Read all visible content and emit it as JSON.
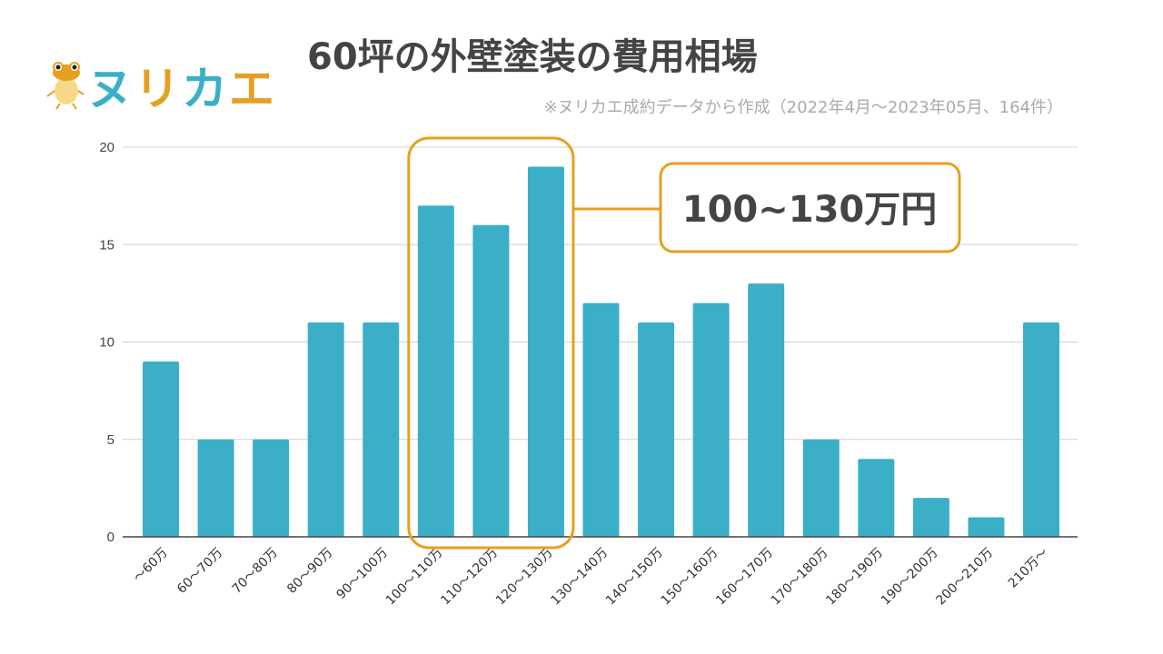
{
  "logo": {
    "text": "ヌリカエ",
    "colors": [
      "#3BAFC8",
      "#E6A020",
      "#3BAFC8",
      "#E6A020"
    ]
  },
  "chart_data": {
    "type": "bar",
    "title": "60坪の外壁塗装の費用相場",
    "subtitle": "※ヌリカエ成約データから作成（2022年4月～2023年05月、164件）",
    "categories": [
      "～60万",
      "60～70万",
      "70～80万",
      "80～90万",
      "90～100万",
      "100～110万",
      "110～120万",
      "120～130万",
      "130～140万",
      "140～150万",
      "150～160万",
      "160～170万",
      "170～180万",
      "180～190万",
      "190～200万",
      "200～210万",
      "210万～"
    ],
    "values": [
      9,
      5,
      5,
      11,
      11,
      17,
      16,
      19,
      12,
      11,
      12,
      13,
      5,
      4,
      2,
      1,
      11
    ],
    "ylim": [
      0,
      20
    ],
    "yticks": [
      0,
      5,
      10,
      15,
      20
    ],
    "grid": true,
    "bar_color": "#3BAFC8",
    "highlight": {
      "categories": [
        "100～110万",
        "110～120万",
        "120～130万"
      ],
      "label": "100~130万円",
      "color": "#E6A020"
    }
  }
}
